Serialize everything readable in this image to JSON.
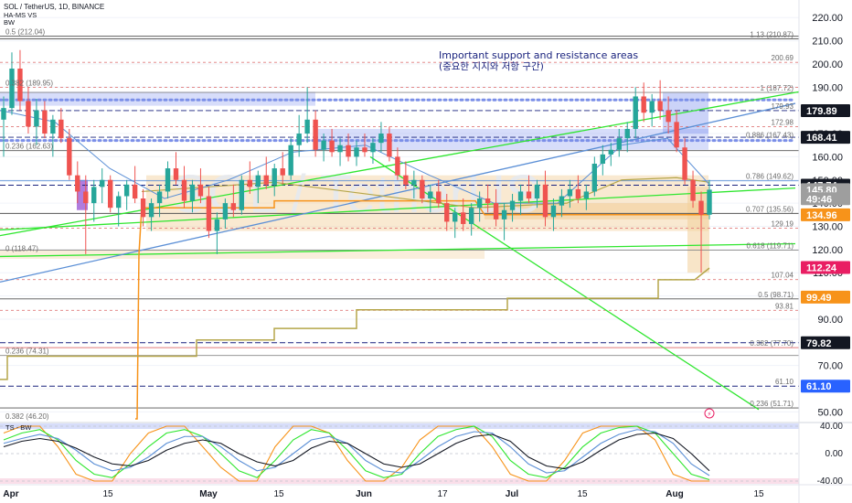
{
  "header": {
    "symbol_line": "SOL / TetherUS, 1D, BINANCE",
    "indicator_1": "HA-MS",
    "indicator_1_suffix": "VS",
    "indicator_2": "BW"
  },
  "annotation": {
    "line1": "Important support and resistance areas",
    "line2": "(중요한 지지와 저항 구간)"
  },
  "watermark": "SOL / TetherUS",
  "sub_panel": {
    "label": "TS - BW"
  },
  "colors": {
    "green_line": "#2ee62e",
    "blue_line": "#5b8fd6",
    "orange_line": "#f7931a",
    "olive_line": "#b5a64a",
    "red_dashed": "#e07a7a",
    "blue_zone": "#8c9df0",
    "orange_zone": "#f2cf9a",
    "up_candle": "#26a69a",
    "down_candle": "#ef5350"
  },
  "chart_data": {
    "type": "candlestick",
    "title": "SOL / TetherUS, 1D, BINANCE",
    "x_tick_labels": [
      "Apr",
      "15",
      "May",
      "15",
      "Jun",
      "17",
      "Jul",
      "15",
      "Aug",
      "15"
    ],
    "x_ticks": [
      {
        "label": "Apr",
        "bold": true
      },
      {
        "label": "15",
        "bold": false
      },
      {
        "label": "May",
        "bold": true
      },
      {
        "label": "15",
        "bold": false
      },
      {
        "label": "Jun",
        "bold": true
      },
      {
        "label": "17",
        "bold": false
      },
      {
        "label": "Jul",
        "bold": true
      },
      {
        "label": "15",
        "bold": false
      },
      {
        "label": "Aug",
        "bold": true
      },
      {
        "label": "15",
        "bold": false
      }
    ],
    "y_axis_ticks": [
      220,
      210,
      200,
      190,
      180,
      170,
      160,
      150,
      140,
      130,
      120,
      110,
      100,
      90,
      80,
      70,
      60,
      50
    ],
    "y_axis_tick_labels": [
      "220.00",
      "210.00",
      "200.00",
      "190.00",
      "180.00",
      "170.00",
      "160.00",
      "150.00",
      "140.00",
      "130.00",
      "120.00",
      "110.00",
      "100.00",
      "90.00",
      "80.00",
      "70.00",
      "60.00",
      "50.00"
    ],
    "ylim": [
      47,
      226
    ],
    "price_tags": [
      {
        "label": "179.89",
        "value": 179.89,
        "color": "#131722"
      },
      {
        "label": "168.41",
        "value": 168.41,
        "color": "#131722"
      },
      {
        "label": "147.74",
        "value": 147.74,
        "color": "#131722"
      },
      {
        "label": "145.80",
        "value": 145.8,
        "color": "#9e9e9e"
      },
      {
        "label": "49:46",
        "value": 141.9,
        "color": "#9e9e9e"
      },
      {
        "label": "134.96",
        "value": 134.96,
        "color": "#f7931a"
      },
      {
        "label": "112.24",
        "value": 112.24,
        "color": "#e91e63"
      },
      {
        "label": "99.49",
        "value": 99.49,
        "color": "#f7931a"
      },
      {
        "label": "79.82",
        "value": 79.82,
        "color": "#131722"
      },
      {
        "label": "61.10",
        "value": 61.1,
        "color": "#2962ff"
      }
    ],
    "fib_labels_right": [
      {
        "label": "1.13 (210.87)",
        "value": 210.87
      },
      {
        "label": "200.69",
        "value": 200.69
      },
      {
        "label": "1 (187.72)",
        "value": 187.72
      },
      {
        "label": "179.93",
        "value": 179.93
      },
      {
        "label": "172.98",
        "value": 172.98
      },
      {
        "label": "0.886 (167.43)",
        "value": 167.43
      },
      {
        "label": "0.786 (149.62)",
        "value": 149.62
      },
      {
        "label": "0.707 (135.56)",
        "value": 135.56
      },
      {
        "label": "129.19",
        "value": 129.19
      },
      {
        "label": "0.618 (119.71)",
        "value": 119.71
      },
      {
        "label": "107.04",
        "value": 107.04
      },
      {
        "label": "0.5 (98.71)",
        "value": 98.71
      },
      {
        "label": "93.81",
        "value": 93.81
      },
      {
        "label": "0.382 (77.70)",
        "value": 77.7
      },
      {
        "label": "61.10",
        "value": 61.1
      },
      {
        "label": "0.236 (51.71)",
        "value": 51.71
      }
    ],
    "fib_labels_left": [
      {
        "label": "0.5 (212.04)",
        "value": 212.04
      },
      {
        "label": "0.382 (189.95)",
        "value": 189.95
      },
      {
        "label": "0.236 (162.63)",
        "value": 162.63
      },
      {
        "label": "0 (118.47)",
        "value": 118.47
      },
      {
        "label": "0.236 (74.31)",
        "value": 74.31
      },
      {
        "label": "0.382 (46.20)",
        "value": 46.2
      }
    ],
    "candles": [
      {
        "o": 176,
        "h": 186,
        "l": 160,
        "c": 181
      },
      {
        "o": 181,
        "h": 205,
        "l": 178,
        "c": 198
      },
      {
        "o": 198,
        "h": 206,
        "l": 180,
        "c": 184
      },
      {
        "o": 184,
        "h": 190,
        "l": 170,
        "c": 173
      },
      {
        "o": 173,
        "h": 185,
        "l": 165,
        "c": 180
      },
      {
        "o": 180,
        "h": 184,
        "l": 168,
        "c": 170
      },
      {
        "o": 170,
        "h": 178,
        "l": 160,
        "c": 176
      },
      {
        "o": 176,
        "h": 181,
        "l": 166,
        "c": 168
      },
      {
        "o": 168,
        "h": 172,
        "l": 150,
        "c": 152
      },
      {
        "o": 152,
        "h": 158,
        "l": 140,
        "c": 145
      },
      {
        "o": 145,
        "h": 152,
        "l": 118,
        "c": 140
      },
      {
        "o": 140,
        "h": 150,
        "l": 132,
        "c": 147
      },
      {
        "o": 147,
        "h": 155,
        "l": 140,
        "c": 150
      },
      {
        "o": 150,
        "h": 152,
        "l": 136,
        "c": 138
      },
      {
        "o": 138,
        "h": 145,
        "l": 130,
        "c": 143
      },
      {
        "o": 143,
        "h": 150,
        "l": 137,
        "c": 148
      },
      {
        "o": 148,
        "h": 156,
        "l": 140,
        "c": 142
      },
      {
        "o": 142,
        "h": 146,
        "l": 130,
        "c": 134
      },
      {
        "o": 134,
        "h": 142,
        "l": 128,
        "c": 140
      },
      {
        "o": 140,
        "h": 148,
        "l": 134,
        "c": 145
      },
      {
        "o": 145,
        "h": 158,
        "l": 142,
        "c": 155
      },
      {
        "o": 155,
        "h": 162,
        "l": 148,
        "c": 150
      },
      {
        "o": 150,
        "h": 156,
        "l": 138,
        "c": 141
      },
      {
        "o": 141,
        "h": 150,
        "l": 136,
        "c": 148
      },
      {
        "o": 148,
        "h": 155,
        "l": 140,
        "c": 143
      },
      {
        "o": 143,
        "h": 147,
        "l": 125,
        "c": 128
      },
      {
        "o": 128,
        "h": 136,
        "l": 118,
        "c": 133
      },
      {
        "o": 133,
        "h": 142,
        "l": 129,
        "c": 140
      },
      {
        "o": 140,
        "h": 148,
        "l": 134,
        "c": 137
      },
      {
        "o": 137,
        "h": 152,
        "l": 135,
        "c": 150
      },
      {
        "o": 150,
        "h": 158,
        "l": 144,
        "c": 147
      },
      {
        "o": 147,
        "h": 154,
        "l": 140,
        "c": 152
      },
      {
        "o": 152,
        "h": 160,
        "l": 146,
        "c": 148
      },
      {
        "o": 148,
        "h": 157,
        "l": 143,
        "c": 155
      },
      {
        "o": 155,
        "h": 162,
        "l": 148,
        "c": 152
      },
      {
        "o": 152,
        "h": 168,
        "l": 150,
        "c": 165
      },
      {
        "o": 165,
        "h": 178,
        "l": 160,
        "c": 170
      },
      {
        "o": 170,
        "h": 190,
        "l": 166,
        "c": 176
      },
      {
        "o": 176,
        "h": 180,
        "l": 160,
        "c": 163
      },
      {
        "o": 163,
        "h": 170,
        "l": 158,
        "c": 167
      },
      {
        "o": 167,
        "h": 172,
        "l": 160,
        "c": 162
      },
      {
        "o": 162,
        "h": 168,
        "l": 156,
        "c": 165
      },
      {
        "o": 165,
        "h": 170,
        "l": 158,
        "c": 160
      },
      {
        "o": 160,
        "h": 167,
        "l": 156,
        "c": 164
      },
      {
        "o": 164,
        "h": 170,
        "l": 160,
        "c": 162
      },
      {
        "o": 162,
        "h": 168,
        "l": 157,
        "c": 166
      },
      {
        "o": 166,
        "h": 175,
        "l": 162,
        "c": 170
      },
      {
        "o": 170,
        "h": 173,
        "l": 158,
        "c": 160
      },
      {
        "o": 160,
        "h": 164,
        "l": 150,
        "c": 152
      },
      {
        "o": 152,
        "h": 158,
        "l": 146,
        "c": 148
      },
      {
        "o": 148,
        "h": 154,
        "l": 142,
        "c": 150
      },
      {
        "o": 150,
        "h": 152,
        "l": 140,
        "c": 142
      },
      {
        "o": 142,
        "h": 148,
        "l": 136,
        "c": 145
      },
      {
        "o": 145,
        "h": 150,
        "l": 138,
        "c": 140
      },
      {
        "o": 140,
        "h": 144,
        "l": 128,
        "c": 132
      },
      {
        "o": 132,
        "h": 138,
        "l": 125,
        "c": 136
      },
      {
        "o": 136,
        "h": 142,
        "l": 128,
        "c": 131
      },
      {
        "o": 131,
        "h": 140,
        "l": 126,
        "c": 138
      },
      {
        "o": 138,
        "h": 145,
        "l": 132,
        "c": 142
      },
      {
        "o": 142,
        "h": 148,
        "l": 136,
        "c": 140
      },
      {
        "o": 140,
        "h": 146,
        "l": 130,
        "c": 133
      },
      {
        "o": 133,
        "h": 140,
        "l": 124,
        "c": 137
      },
      {
        "o": 137,
        "h": 144,
        "l": 132,
        "c": 141
      },
      {
        "o": 141,
        "h": 148,
        "l": 135,
        "c": 145
      },
      {
        "o": 145,
        "h": 152,
        "l": 140,
        "c": 142
      },
      {
        "o": 142,
        "h": 150,
        "l": 138,
        "c": 148
      },
      {
        "o": 148,
        "h": 154,
        "l": 130,
        "c": 134
      },
      {
        "o": 134,
        "h": 142,
        "l": 128,
        "c": 139
      },
      {
        "o": 139,
        "h": 146,
        "l": 134,
        "c": 143
      },
      {
        "o": 143,
        "h": 150,
        "l": 138,
        "c": 146
      },
      {
        "o": 146,
        "h": 152,
        "l": 140,
        "c": 142
      },
      {
        "o": 142,
        "h": 148,
        "l": 137,
        "c": 145
      },
      {
        "o": 145,
        "h": 160,
        "l": 143,
        "c": 157
      },
      {
        "o": 157,
        "h": 165,
        "l": 152,
        "c": 161
      },
      {
        "o": 161,
        "h": 166,
        "l": 156,
        "c": 163
      },
      {
        "o": 163,
        "h": 172,
        "l": 160,
        "c": 168
      },
      {
        "o": 168,
        "h": 175,
        "l": 162,
        "c": 172
      },
      {
        "o": 172,
        "h": 190,
        "l": 168,
        "c": 186
      },
      {
        "o": 186,
        "h": 192,
        "l": 175,
        "c": 179
      },
      {
        "o": 179,
        "h": 187,
        "l": 173,
        "c": 184
      },
      {
        "o": 184,
        "h": 193,
        "l": 176,
        "c": 180
      },
      {
        "o": 180,
        "h": 186,
        "l": 170,
        "c": 175
      },
      {
        "o": 175,
        "h": 180,
        "l": 162,
        "c": 164
      },
      {
        "o": 164,
        "h": 168,
        "l": 148,
        "c": 150
      },
      {
        "o": 150,
        "h": 154,
        "l": 138,
        "c": 141
      },
      {
        "o": 141,
        "h": 145,
        "l": 110,
        "c": 135
      },
      {
        "o": 135,
        "h": 150,
        "l": 133,
        "c": 145.8
      }
    ],
    "lines": [
      {
        "name": "",
        "color": "#2ee62e",
        "points": [
          [
            0,
            126
          ],
          [
            874,
            188
          ]
        ]
      },
      {
        "name": "",
        "color": "#2ee62e",
        "points": [
          [
            0,
            128.5
          ],
          [
            870,
            146.5
          ]
        ]
      },
      {
        "name": "",
        "color": "#2ee62e",
        "points": [
          [
            0,
            117
          ],
          [
            870,
            122.5
          ]
        ]
      },
      {
        "name": "",
        "color": "#2ee62e",
        "points": [
          [
            405,
            160
          ],
          [
            830,
            51
          ]
        ]
      },
      {
        "name": "",
        "color": "#5b8fd6",
        "points": [
          [
            0,
            106
          ],
          [
            870,
            183
          ]
        ]
      }
    ]
  }
}
